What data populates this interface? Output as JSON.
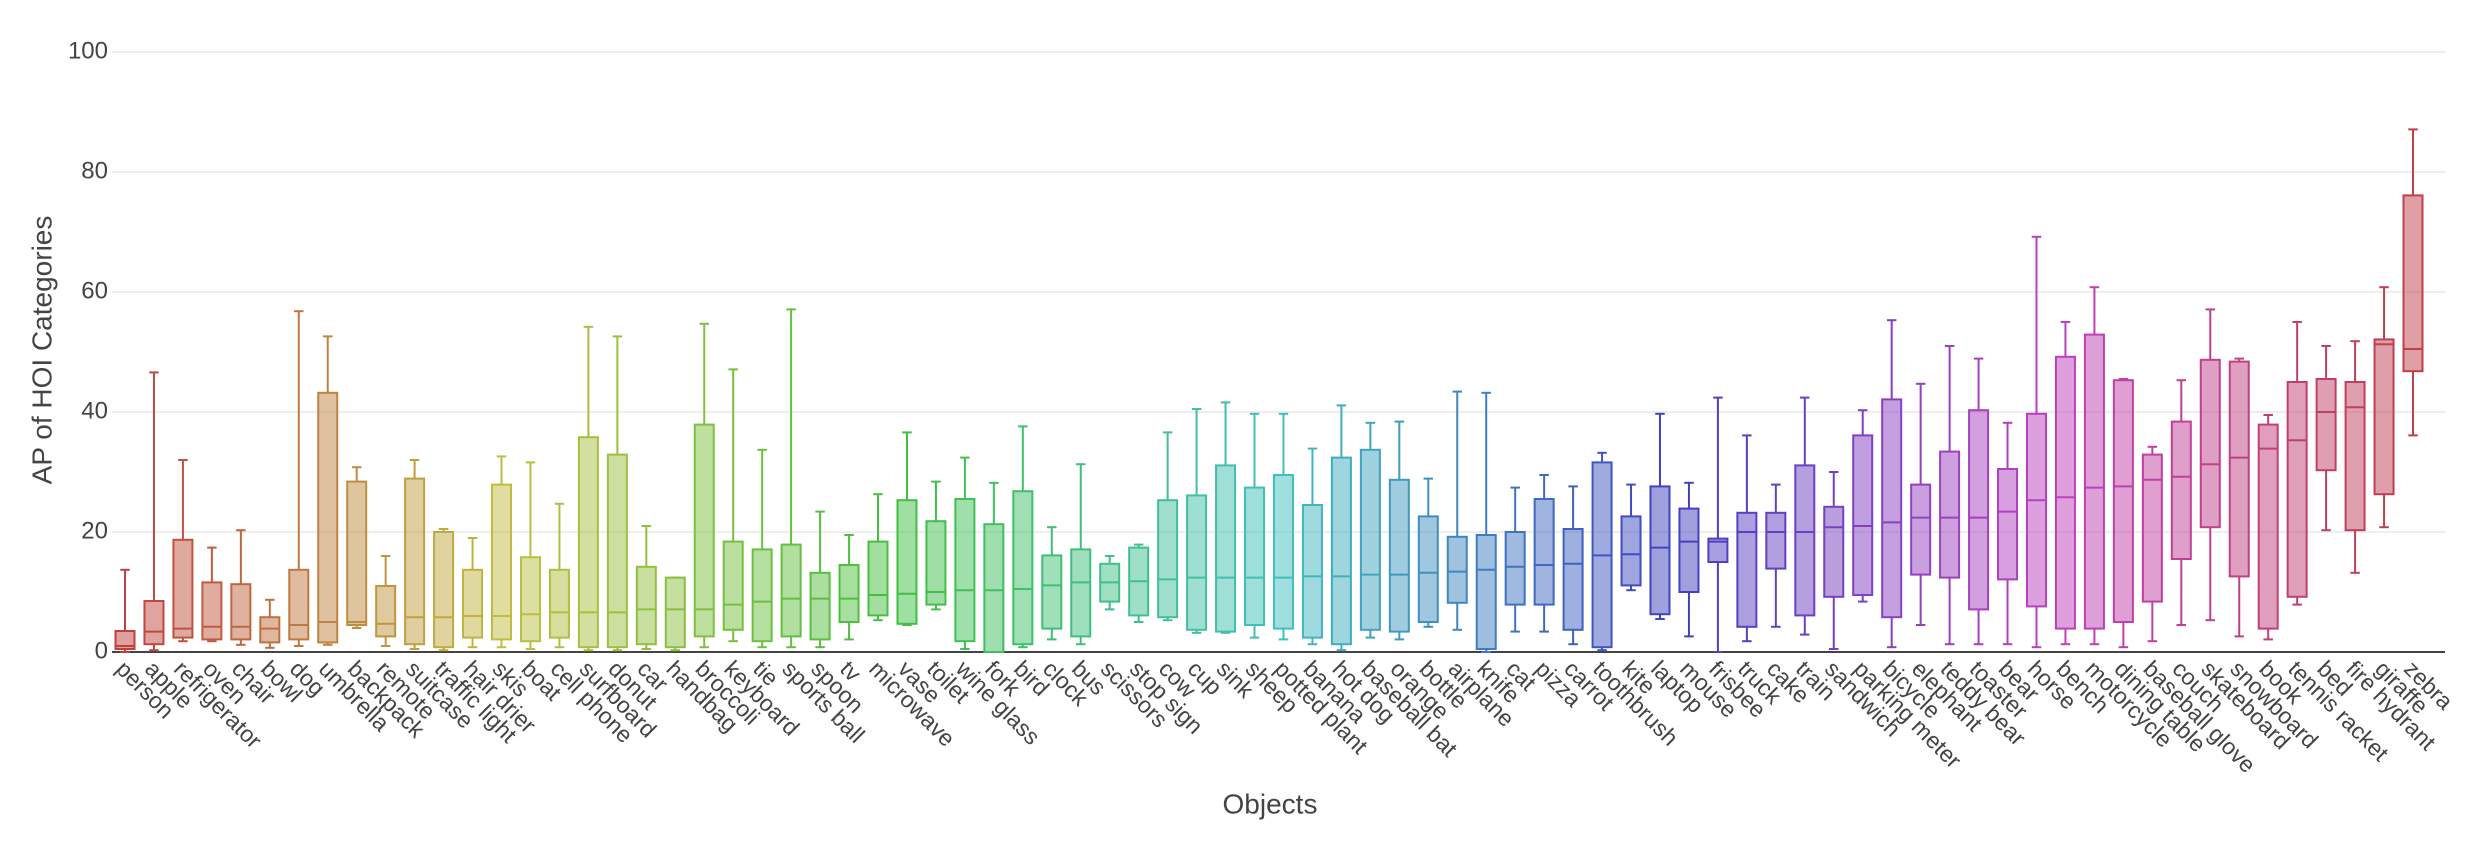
{
  "chart_data": {
    "type": "box",
    "x_label": "Objects",
    "y_label": "AP of HOI Categories",
    "ylim": [
      0,
      100
    ],
    "yticks": [
      0,
      20,
      40,
      60,
      80,
      100
    ],
    "grid": true,
    "categories": [
      "person",
      "apple",
      "refrigerator",
      "oven",
      "chair",
      "bowl",
      "dog",
      "umbrella",
      "backpack",
      "remote",
      "suitcase",
      "traffic light",
      "hair drier",
      "skis",
      "boat",
      "cell phone",
      "surfboard",
      "donut",
      "car",
      "handbag",
      "broccoli",
      "keyboard",
      "tie",
      "sports ball",
      "spoon",
      "tv",
      "microwave",
      "vase",
      "toilet",
      "wine glass",
      "fork",
      "bird",
      "clock",
      "bus",
      "scissors",
      "stop sign",
      "cow",
      "cup",
      "sink",
      "sheep",
      "potted plant",
      "banana",
      "hot dog",
      "baseball bat",
      "orange",
      "bottle",
      "airplane",
      "knife",
      "cat",
      "pizza",
      "carrot",
      "toothbrush",
      "kite",
      "laptop",
      "mouse",
      "frisbee",
      "truck",
      "cake",
      "train",
      "sandwich",
      "parking meter",
      "bicycle",
      "elephant",
      "teddy bear",
      "toaster",
      "bear",
      "horse",
      "bench",
      "motorcycle",
      "dining table",
      "baseball glove",
      "couch",
      "skateboard",
      "snowboard",
      "book",
      "tennis racket",
      "bed",
      "fire hydrant",
      "giraffe",
      "zebra"
    ],
    "boxes": [
      [
        0,
        0.5,
        1,
        3.5,
        13.7
      ],
      [
        0.3,
        1.3,
        3.4,
        8.5,
        46.6
      ],
      [
        1.8,
        2.4,
        3.9,
        18.7,
        32
      ],
      [
        1.8,
        2.1,
        4.2,
        11.6,
        17.4
      ],
      [
        1.2,
        2.1,
        4.2,
        11.3,
        20.3
      ],
      [
        0.7,
        1.6,
        3.9,
        5.8,
        8.7
      ],
      [
        1,
        2.1,
        4.5,
        13.7,
        56.8
      ],
      [
        1.2,
        1.6,
        5,
        43.2,
        52.6
      ],
      [
        4,
        4.5,
        5,
        28.4,
        30.8
      ],
      [
        1,
        2.6,
        4.7,
        11,
        16
      ],
      [
        0.5,
        1.3,
        5.8,
        28.9,
        32
      ],
      [
        0.3,
        0.8,
        5.8,
        20,
        20.5
      ],
      [
        0.8,
        2.4,
        6,
        13.7,
        19
      ],
      [
        0.8,
        2.1,
        6,
        27.9,
        32.6
      ],
      [
        0.5,
        1.8,
        6.3,
        15.8,
        31.6
      ],
      [
        0.8,
        2.4,
        6.6,
        13.7,
        24.7
      ],
      [
        0.3,
        0.8,
        6.6,
        35.8,
        54.2
      ],
      [
        0.3,
        0.8,
        6.6,
        32.9,
        52.6
      ],
      [
        0.5,
        1.3,
        7.1,
        14.2,
        21
      ],
      [
        0.3,
        0.8,
        7.1,
        12.4,
        12.4
      ],
      [
        0.8,
        2.6,
        7.1,
        37.9,
        54.7
      ],
      [
        1.8,
        3.7,
        7.9,
        18.4,
        47.1
      ],
      [
        0.8,
        1.8,
        8.4,
        17.1,
        33.7
      ],
      [
        0.8,
        2.6,
        8.9,
        17.9,
        57.1
      ],
      [
        0.8,
        2.1,
        8.9,
        13.2,
        23.4
      ],
      [
        2.1,
        5,
        8.9,
        14.5,
        19.5
      ],
      [
        5.3,
        6.1,
        9.5,
        18.4,
        26.3
      ],
      [
        4.5,
        4.7,
        9.7,
        25.3,
        36.6
      ],
      [
        7.1,
        7.9,
        10,
        21.8,
        28.4
      ],
      [
        0.5,
        1.8,
        10.3,
        25.5,
        32.4
      ],
      [
        0,
        0,
        10.3,
        21.3,
        28.2
      ],
      [
        0.8,
        1.3,
        10.5,
        26.8,
        37.6
      ],
      [
        2.1,
        3.9,
        11.1,
        16.1,
        20.8
      ],
      [
        1.3,
        2.6,
        11.6,
        17.1,
        31.3
      ],
      [
        7.1,
        8.4,
        11.6,
        14.7,
        16
      ],
      [
        5,
        6.1,
        11.8,
        17.4,
        17.9
      ],
      [
        5.3,
        5.8,
        12.1,
        25.3,
        36.6
      ],
      [
        3.2,
        3.7,
        12.4,
        26.1,
        40.5
      ],
      [
        3.2,
        3.4,
        12.4,
        31.1,
        41.6
      ],
      [
        2.4,
        4.5,
        12.4,
        27.4,
        39.7
      ],
      [
        2.1,
        3.9,
        12.4,
        29.5,
        39.7
      ],
      [
        1.3,
        2.4,
        12.6,
        24.5,
        33.9
      ],
      [
        0.3,
        1.3,
        12.6,
        32.4,
        41.1
      ],
      [
        2.4,
        3.7,
        12.9,
        33.7,
        38.2
      ],
      [
        2.1,
        3.4,
        12.9,
        28.7,
        38.4
      ],
      [
        4.2,
        5,
        13.2,
        22.6,
        28.9
      ],
      [
        3.7,
        8.2,
        13.4,
        19.2,
        43.4
      ],
      [
        0,
        0.5,
        13.7,
        19.5,
        43.2
      ],
      [
        3.4,
        7.9,
        14.2,
        20,
        27.4
      ],
      [
        3.4,
        7.9,
        14.5,
        25.5,
        29.5
      ],
      [
        1.3,
        3.7,
        14.7,
        20.5,
        27.6
      ],
      [
        0.3,
        0.8,
        16.1,
        31.6,
        33.2
      ],
      [
        10.3,
        11.1,
        16.3,
        22.6,
        27.9
      ],
      [
        5.5,
        6.3,
        17.4,
        27.6,
        39.7
      ],
      [
        2.6,
        10,
        18.4,
        23.9,
        28.2
      ],
      [
        0,
        15,
        18.4,
        18.9,
        42.4
      ],
      [
        1.8,
        4.2,
        20,
        23.2,
        36.1
      ],
      [
        4.2,
        13.9,
        20,
        23.2,
        27.9
      ],
      [
        2.9,
        6.1,
        20,
        31.1,
        42.4
      ],
      [
        0.5,
        9.2,
        20.8,
        24.2,
        30
      ],
      [
        8.4,
        9.5,
        21,
        36.1,
        40.3
      ],
      [
        0.8,
        5.8,
        21.6,
        42.1,
        55.3
      ],
      [
        4.5,
        12.9,
        22.4,
        27.9,
        44.7
      ],
      [
        1.3,
        12.4,
        22.4,
        33.4,
        51
      ],
      [
        1.3,
        7.1,
        22.4,
        40.3,
        48.9
      ],
      [
        1.3,
        12.1,
        23.4,
        30.5,
        38.2
      ],
      [
        0.8,
        7.6,
        25.3,
        39.7,
        69.2
      ],
      [
        1.3,
        3.9,
        25.8,
        49.2,
        55
      ],
      [
        1.3,
        3.9,
        27.4,
        52.9,
        60.8
      ],
      [
        0.8,
        5,
        27.6,
        45.3,
        45.5
      ],
      [
        1.8,
        8.4,
        28.7,
        32.9,
        34.2
      ],
      [
        4.5,
        15.5,
        29.2,
        38.4,
        45.3
      ],
      [
        5.3,
        20.8,
        31.3,
        48.7,
        57.1
      ],
      [
        2.6,
        12.6,
        32.4,
        48.4,
        48.9
      ],
      [
        2.1,
        3.9,
        33.9,
        37.9,
        39.5
      ],
      [
        7.9,
        9.2,
        35.3,
        45,
        55
      ],
      [
        20.3,
        30.3,
        40,
        45.5,
        51
      ],
      [
        13.2,
        20.3,
        40.8,
        45,
        51.8
      ],
      [
        20.8,
        26.3,
        51.3,
        52.1,
        60.8
      ],
      [
        36.1,
        46.8,
        50.5,
        76.1,
        87.1
      ]
    ],
    "colors": [
      "hsl(0,50%,50%)",
      "hsl(4.5,50%,50%)",
      "hsl(9,50%,50%)",
      "hsl(13.5,50%,50%)",
      "hsl(18,50%,50%)",
      "hsl(22.5,50%,50%)",
      "hsl(27,50%,50%)",
      "hsl(31.5,50%,50%)",
      "hsl(36,50%,50%)",
      "hsl(40.5,50%,50%)",
      "hsl(45,50%,50%)",
      "hsl(49.5,50%,50%)",
      "hsl(54,50%,50%)",
      "hsl(58.5,50%,50%)",
      "hsl(63,50%,50%)",
      "hsl(67.5,50%,50%)",
      "hsl(72,50%,50%)",
      "hsl(76.5,50%,50%)",
      "hsl(81,50%,50%)",
      "hsl(85.5,50%,50%)",
      "hsl(90,50%,50%)",
      "hsl(94.5,50%,50%)",
      "hsl(99,50%,50%)",
      "hsl(103.5,50%,50%)",
      "hsl(108,50%,50%)",
      "hsl(112.5,50%,50%)",
      "hsl(117,50%,50%)",
      "hsl(121.5,50%,50%)",
      "hsl(126,50%,50%)",
      "hsl(130.5,50%,50%)",
      "hsl(135,50%,50%)",
      "hsl(139.5,50%,50%)",
      "hsl(144,50%,50%)",
      "hsl(148.5,50%,50%)",
      "hsl(153,50%,50%)",
      "hsl(157.5,50%,50%)",
      "hsl(162,50%,50%)",
      "hsl(166.5,50%,50%)",
      "hsl(171,50%,50%)",
      "hsl(175.5,50%,50%)",
      "hsl(180,50%,50%)",
      "hsl(184.5,50%,50%)",
      "hsl(189,50%,50%)",
      "hsl(193.5,50%,50%)",
      "hsl(198,50%,50%)",
      "hsl(202.5,50%,50%)",
      "hsl(207,50%,50%)",
      "hsl(211.5,50%,50%)",
      "hsl(216,50%,50%)",
      "hsl(220.5,50%,50%)",
      "hsl(225,50%,50%)",
      "hsl(229.5,50%,50%)",
      "hsl(234,50%,50%)",
      "hsl(238.5,50%,50%)",
      "hsl(243,50%,50%)",
      "hsl(247.5,50%,50%)",
      "hsl(252,50%,50%)",
      "hsl(256.5,50%,50%)",
      "hsl(261,50%,50%)",
      "hsl(265.5,50%,50%)",
      "hsl(270,50%,50%)",
      "hsl(274.5,50%,50%)",
      "hsl(279,50%,50%)",
      "hsl(283.5,50%,50%)",
      "hsl(288,50%,50%)",
      "hsl(292.5,50%,50%)",
      "hsl(297,50%,50%)",
      "hsl(301.5,50%,50%)",
      "hsl(306,50%,50%)",
      "hsl(310.5,50%,50%)",
      "hsl(315,50%,50%)",
      "hsl(319.5,50%,50%)",
      "hsl(324,50%,50%)",
      "hsl(328.5,50%,50%)",
      "hsl(333,50%,50%)",
      "hsl(337.5,50%,50%)",
      "hsl(342,50%,50%)",
      "hsl(346.5,50%,50%)",
      "hsl(351,50%,50%)",
      "hsl(355.5,50%,50%)"
    ]
  }
}
